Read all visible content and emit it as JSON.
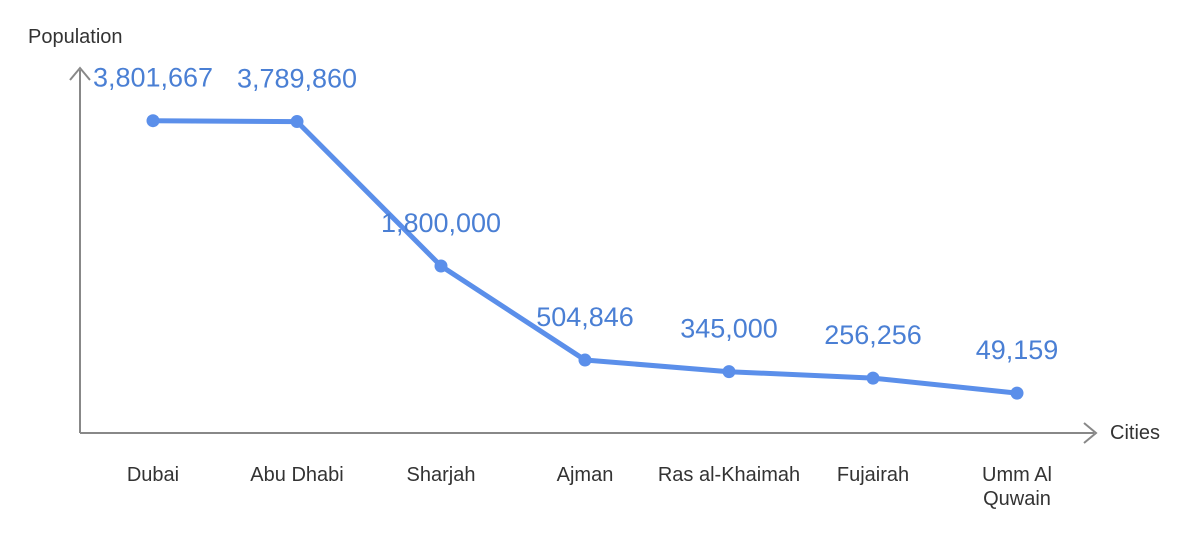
{
  "chart_data": {
    "type": "line",
    "title": "",
    "xlabel": "Cities",
    "ylabel": "Population",
    "categories": [
      "Dubai",
      "Abu Dhabi",
      "Sharjah",
      "Ajman",
      "Ras al-Khaimah",
      "Fujairah",
      "Umm Al Quwain"
    ],
    "category_lines": [
      [
        "Dubai"
      ],
      [
        "Abu Dhabi"
      ],
      [
        "Sharjah"
      ],
      [
        "Ajman"
      ],
      [
        "Ras al-Khaimah"
      ],
      [
        "Fujairah"
      ],
      [
        "Umm Al",
        "Quwain"
      ]
    ],
    "values": [
      3801667,
      3789860,
      1800000,
      504846,
      345000,
      256256,
      49159
    ],
    "value_labels": [
      "3,801,667",
      "3,789,860",
      "1,800,000",
      "504,846",
      "345,000",
      "256,256",
      "49,159"
    ],
    "ylim": [
      -500000,
      4500000
    ],
    "grid": false,
    "legend": "none",
    "colors": {
      "line": "#5B8FEA",
      "label": "#4A7FD4",
      "axis": "#888888",
      "text": "#333333"
    }
  }
}
